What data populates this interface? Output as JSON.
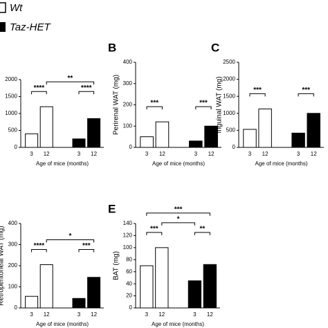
{
  "legend": [
    {
      "name": "Wt",
      "color": "#ffffff"
    },
    {
      "name": "Taz-HET",
      "color": "#000000"
    }
  ],
  "chart_data": [
    {
      "type": "bar",
      "ylabel": "",
      "xlabel": "Age of mice (months)",
      "categories": [
        "3",
        "12",
        "3",
        "12"
      ],
      "values": [
        400,
        1200,
        250,
        850
      ],
      "colors": [
        "#ffffff",
        "#ffffff",
        "#000000",
        "#000000"
      ],
      "ylim": [
        0,
        2000
      ],
      "yticks": [
        0,
        500,
        1000,
        1500,
        2000
      ],
      "annotations": [
        "****",
        "****",
        "**"
      ]
    },
    {
      "type": "bar",
      "panel": "B",
      "ylabel": "Perirenal WAT (mg)",
      "xlabel": "Age of mice (months)",
      "categories": [
        "3",
        "12",
        "3",
        "12"
      ],
      "values": [
        50,
        120,
        30,
        100
      ],
      "colors": [
        "#ffffff",
        "#ffffff",
        "#000000",
        "#000000"
      ],
      "ylim": [
        0,
        400
      ],
      "yticks": [
        0,
        100,
        200,
        300,
        400
      ],
      "annotations": [
        "***",
        "***"
      ]
    },
    {
      "type": "bar",
      "panel": "C",
      "ylabel": "Inguinal WAT (mg)",
      "xlabel": "Age of mice (months)",
      "categories": [
        "3",
        "12",
        "3",
        "12"
      ],
      "values": [
        530,
        1130,
        420,
        1000
      ],
      "colors": [
        "#ffffff",
        "#ffffff",
        "#000000",
        "#000000"
      ],
      "ylim": [
        0,
        2500
      ],
      "yticks": [
        0,
        500,
        1000,
        1500,
        2000,
        2500
      ],
      "annotations": [
        "***",
        "***"
      ]
    },
    {
      "type": "bar",
      "ylabel": "Retroperitoneal WAT (mg)",
      "xlabel": "Age of mice (months)",
      "categories": [
        "3",
        "12",
        "3",
        "12"
      ],
      "values": [
        55,
        205,
        45,
        145
      ],
      "colors": [
        "#ffffff",
        "#ffffff",
        "#000000",
        "#000000"
      ],
      "ylim": [
        0,
        400
      ],
      "yticks": [
        0,
        100,
        200,
        300,
        400
      ],
      "annotations": [
        "****",
        "***",
        "*"
      ]
    },
    {
      "type": "bar",
      "panel": "E",
      "ylabel": "BAT (mg)",
      "xlabel": "Age of mice (months)",
      "categories": [
        "3",
        "12",
        "3",
        "12"
      ],
      "values": [
        70,
        100,
        45,
        72
      ],
      "colors": [
        "#ffffff",
        "#ffffff",
        "#000000",
        "#000000"
      ],
      "ylim": [
        0,
        140
      ],
      "yticks": [
        0,
        20,
        40,
        60,
        80,
        100,
        120,
        140
      ],
      "annotations": [
        "***",
        "**",
        "*",
        "***"
      ]
    }
  ]
}
